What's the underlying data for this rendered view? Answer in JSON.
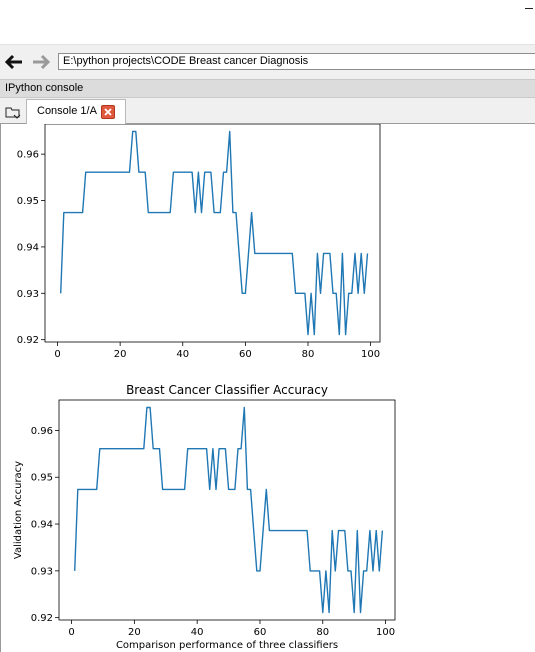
{
  "window": {
    "minimize_icon": "minimize-icon"
  },
  "toolbar": {
    "back_icon": "arrow-left-icon",
    "forward_icon": "arrow-right-icon",
    "path": "E:\\python projects\\CODE Breast cancer Diagnosis"
  },
  "pane": {
    "title": "IPython console"
  },
  "tabs": [
    {
      "label": "Console 1/A",
      "close_icon": "close-icon"
    }
  ],
  "colors": {
    "line": "#1f77b4",
    "close": "#e0583e"
  },
  "chart_data": [
    {
      "type": "line",
      "title": "",
      "xlabel": "",
      "ylabel": "",
      "xlim": [
        -4,
        103
      ],
      "ylim": [
        0.9195,
        0.9665
      ],
      "xticks": [
        0,
        20,
        40,
        60,
        80,
        100
      ],
      "yticks": [
        0.92,
        0.93,
        0.94,
        0.95,
        0.96
      ],
      "xtick_labels": [
        "0",
        "20",
        "40",
        "60",
        "80",
        "100"
      ],
      "ytick_labels": [
        "0.92",
        "0.93",
        "0.94",
        "0.95",
        "0.96"
      ],
      "series": [
        {
          "x": [
            1,
            2,
            3,
            4,
            5,
            6,
            7,
            8,
            9,
            10,
            11,
            12,
            13,
            14,
            15,
            16,
            17,
            18,
            19,
            20,
            21,
            22,
            23,
            24,
            25,
            26,
            27,
            28,
            29,
            30,
            31,
            32,
            33,
            34,
            35,
            36,
            37,
            38,
            39,
            40,
            41,
            42,
            43,
            44,
            45,
            46,
            47,
            48,
            49,
            50,
            51,
            52,
            53,
            54,
            55,
            56,
            57,
            58,
            59,
            60,
            61,
            62,
            63,
            64,
            65,
            66,
            67,
            68,
            69,
            70,
            71,
            72,
            73,
            74,
            75,
            76,
            77,
            78,
            79,
            80,
            81,
            82,
            83,
            84,
            85,
            86,
            87,
            88,
            89,
            90,
            91,
            92,
            93,
            94,
            95,
            96,
            97,
            98,
            99
          ],
          "y": [
            0.93,
            0.9474,
            0.9474,
            0.9474,
            0.9474,
            0.9474,
            0.9474,
            0.9474,
            0.9561,
            0.9561,
            0.9561,
            0.9561,
            0.9561,
            0.9561,
            0.9561,
            0.9561,
            0.9561,
            0.9561,
            0.9561,
            0.9561,
            0.9561,
            0.9561,
            0.9561,
            0.9649,
            0.9649,
            0.9561,
            0.9561,
            0.9561,
            0.9474,
            0.9474,
            0.9474,
            0.9474,
            0.9474,
            0.9474,
            0.9474,
            0.9474,
            0.9561,
            0.9561,
            0.9561,
            0.9561,
            0.9561,
            0.9561,
            0.9561,
            0.9474,
            0.9561,
            0.9474,
            0.9561,
            0.9561,
            0.9561,
            0.9474,
            0.9474,
            0.9474,
            0.9561,
            0.9561,
            0.9649,
            0.9474,
            0.9474,
            0.9386,
            0.93,
            0.93,
            0.9386,
            0.9474,
            0.9386,
            0.9386,
            0.9386,
            0.9386,
            0.9386,
            0.9386,
            0.9386,
            0.9386,
            0.9386,
            0.9386,
            0.9386,
            0.9386,
            0.9386,
            0.93,
            0.93,
            0.93,
            0.93,
            0.9211,
            0.93,
            0.9211,
            0.9386,
            0.93,
            0.9386,
            0.9386,
            0.9386,
            0.93,
            0.93,
            0.9211,
            0.9386,
            0.9211,
            0.93,
            0.93,
            0.9386,
            0.93,
            0.9386,
            0.93,
            0.9386
          ]
        }
      ]
    },
    {
      "type": "line",
      "title": "Breast Cancer Classifier Accuracy",
      "xlabel": "Comparison performance of three classifiers",
      "ylabel": "Validation Accuracy",
      "xlim": [
        -4,
        103
      ],
      "ylim": [
        0.9195,
        0.9665
      ],
      "xticks": [
        0,
        20,
        40,
        60,
        80,
        100
      ],
      "yticks": [
        0.92,
        0.93,
        0.94,
        0.95,
        0.96
      ],
      "xtick_labels": [
        "0",
        "20",
        "40",
        "60",
        "80",
        "100"
      ],
      "ytick_labels": [
        "0.92",
        "0.93",
        "0.94",
        "0.95",
        "0.96"
      ],
      "series": [
        {
          "x": [
            1,
            2,
            3,
            4,
            5,
            6,
            7,
            8,
            9,
            10,
            11,
            12,
            13,
            14,
            15,
            16,
            17,
            18,
            19,
            20,
            21,
            22,
            23,
            24,
            25,
            26,
            27,
            28,
            29,
            30,
            31,
            32,
            33,
            34,
            35,
            36,
            37,
            38,
            39,
            40,
            41,
            42,
            43,
            44,
            45,
            46,
            47,
            48,
            49,
            50,
            51,
            52,
            53,
            54,
            55,
            56,
            57,
            58,
            59,
            60,
            61,
            62,
            63,
            64,
            65,
            66,
            67,
            68,
            69,
            70,
            71,
            72,
            73,
            74,
            75,
            76,
            77,
            78,
            79,
            80,
            81,
            82,
            83,
            84,
            85,
            86,
            87,
            88,
            89,
            90,
            91,
            92,
            93,
            94,
            95,
            96,
            97,
            98,
            99
          ],
          "y": [
            0.93,
            0.9474,
            0.9474,
            0.9474,
            0.9474,
            0.9474,
            0.9474,
            0.9474,
            0.9561,
            0.9561,
            0.9561,
            0.9561,
            0.9561,
            0.9561,
            0.9561,
            0.9561,
            0.9561,
            0.9561,
            0.9561,
            0.9561,
            0.9561,
            0.9561,
            0.9561,
            0.9649,
            0.9649,
            0.9561,
            0.9561,
            0.9561,
            0.9474,
            0.9474,
            0.9474,
            0.9474,
            0.9474,
            0.9474,
            0.9474,
            0.9474,
            0.9561,
            0.9561,
            0.9561,
            0.9561,
            0.9561,
            0.9561,
            0.9561,
            0.9474,
            0.9561,
            0.9474,
            0.9561,
            0.9561,
            0.9561,
            0.9474,
            0.9474,
            0.9474,
            0.9561,
            0.9561,
            0.9649,
            0.9474,
            0.9474,
            0.9386,
            0.93,
            0.93,
            0.9386,
            0.9474,
            0.9386,
            0.9386,
            0.9386,
            0.9386,
            0.9386,
            0.9386,
            0.9386,
            0.9386,
            0.9386,
            0.9386,
            0.9386,
            0.9386,
            0.9386,
            0.93,
            0.93,
            0.93,
            0.93,
            0.9211,
            0.93,
            0.9211,
            0.9386,
            0.93,
            0.9386,
            0.9386,
            0.9386,
            0.93,
            0.93,
            0.9211,
            0.9386,
            0.9211,
            0.93,
            0.93,
            0.9386,
            0.93,
            0.9386,
            0.93,
            0.9386
          ]
        }
      ]
    }
  ]
}
